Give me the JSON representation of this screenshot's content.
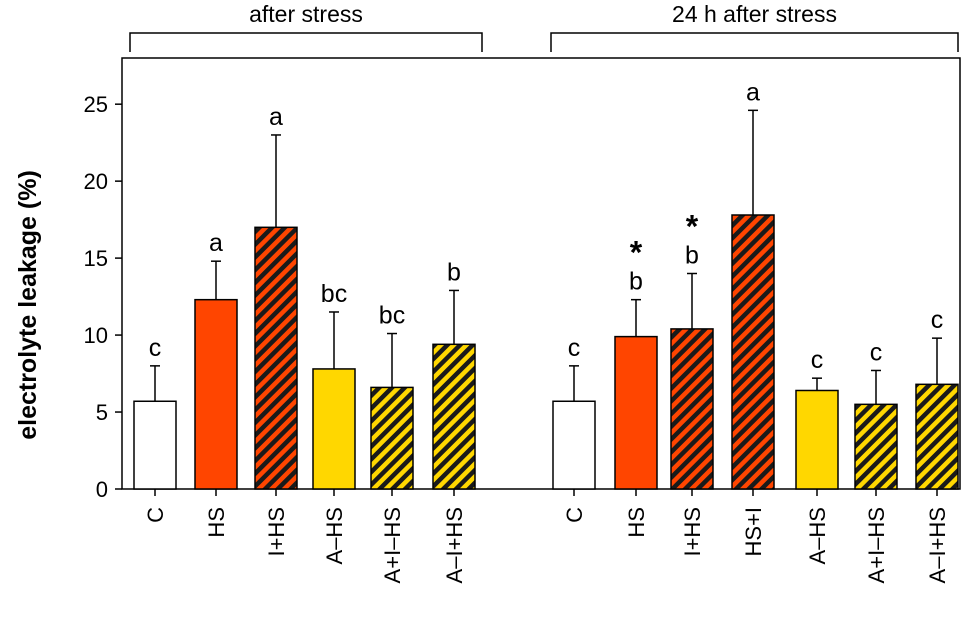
{
  "chart_data": {
    "type": "bar",
    "ylabel": "electrolyte leakage  (%)",
    "ylim": [
      0,
      28
    ],
    "yticks": [
      0,
      5,
      10,
      15,
      20,
      25
    ],
    "grid": false,
    "groups": [
      {
        "label": "after stress",
        "bars": [
          {
            "category": "C",
            "value": 5.7,
            "error": 2.3,
            "letter": "c",
            "star": "",
            "fill": "white"
          },
          {
            "category": "HS",
            "value": 12.3,
            "error": 2.5,
            "letter": "a",
            "star": "",
            "fill": "red"
          },
          {
            "category": "I+HS",
            "value": 17.0,
            "error": 6.0,
            "letter": "a",
            "star": "",
            "fill": "red-hatched"
          },
          {
            "category": "A–HS",
            "value": 7.8,
            "error": 3.7,
            "letter": "bc",
            "star": "",
            "fill": "yellow"
          },
          {
            "category": "A+I–HS",
            "value": 6.6,
            "error": 3.5,
            "letter": "bc",
            "star": "",
            "fill": "yellow-hatched"
          },
          {
            "category": "A–I+HS",
            "value": 9.4,
            "error": 3.5,
            "letter": "b",
            "star": "",
            "fill": "yellow-hatched"
          }
        ]
      },
      {
        "label": "24 h after stress",
        "bars": [
          {
            "category": "C",
            "value": 5.7,
            "error": 2.3,
            "letter": "c",
            "star": "",
            "fill": "white"
          },
          {
            "category": "HS",
            "value": 9.9,
            "error": 2.4,
            "letter": "b",
            "star": "*",
            "fill": "red"
          },
          {
            "category": "I+HS",
            "value": 10.4,
            "error": 3.6,
            "letter": "b",
            "star": "*",
            "fill": "red-hatched"
          },
          {
            "category": "HS+I",
            "value": 17.8,
            "error": 6.8,
            "letter": "a",
            "star": "",
            "fill": "red-hatched"
          },
          {
            "category": "A–HS",
            "value": 6.4,
            "error": 0.8,
            "letter": "c",
            "star": "",
            "fill": "yellow"
          },
          {
            "category": "A+I–HS",
            "value": 5.5,
            "error": 2.2,
            "letter": "c",
            "star": "",
            "fill": "yellow-hatched"
          },
          {
            "category": "A–I+HS",
            "value": 6.8,
            "error": 3.0,
            "letter": "c",
            "star": "",
            "fill": "yellow-hatched"
          }
        ]
      }
    ],
    "colors": {
      "red": "#ff4500",
      "yellow": "#ffd700",
      "white": "#ffffff",
      "hatch": "#1a1a1a",
      "outline": "#000000"
    }
  }
}
